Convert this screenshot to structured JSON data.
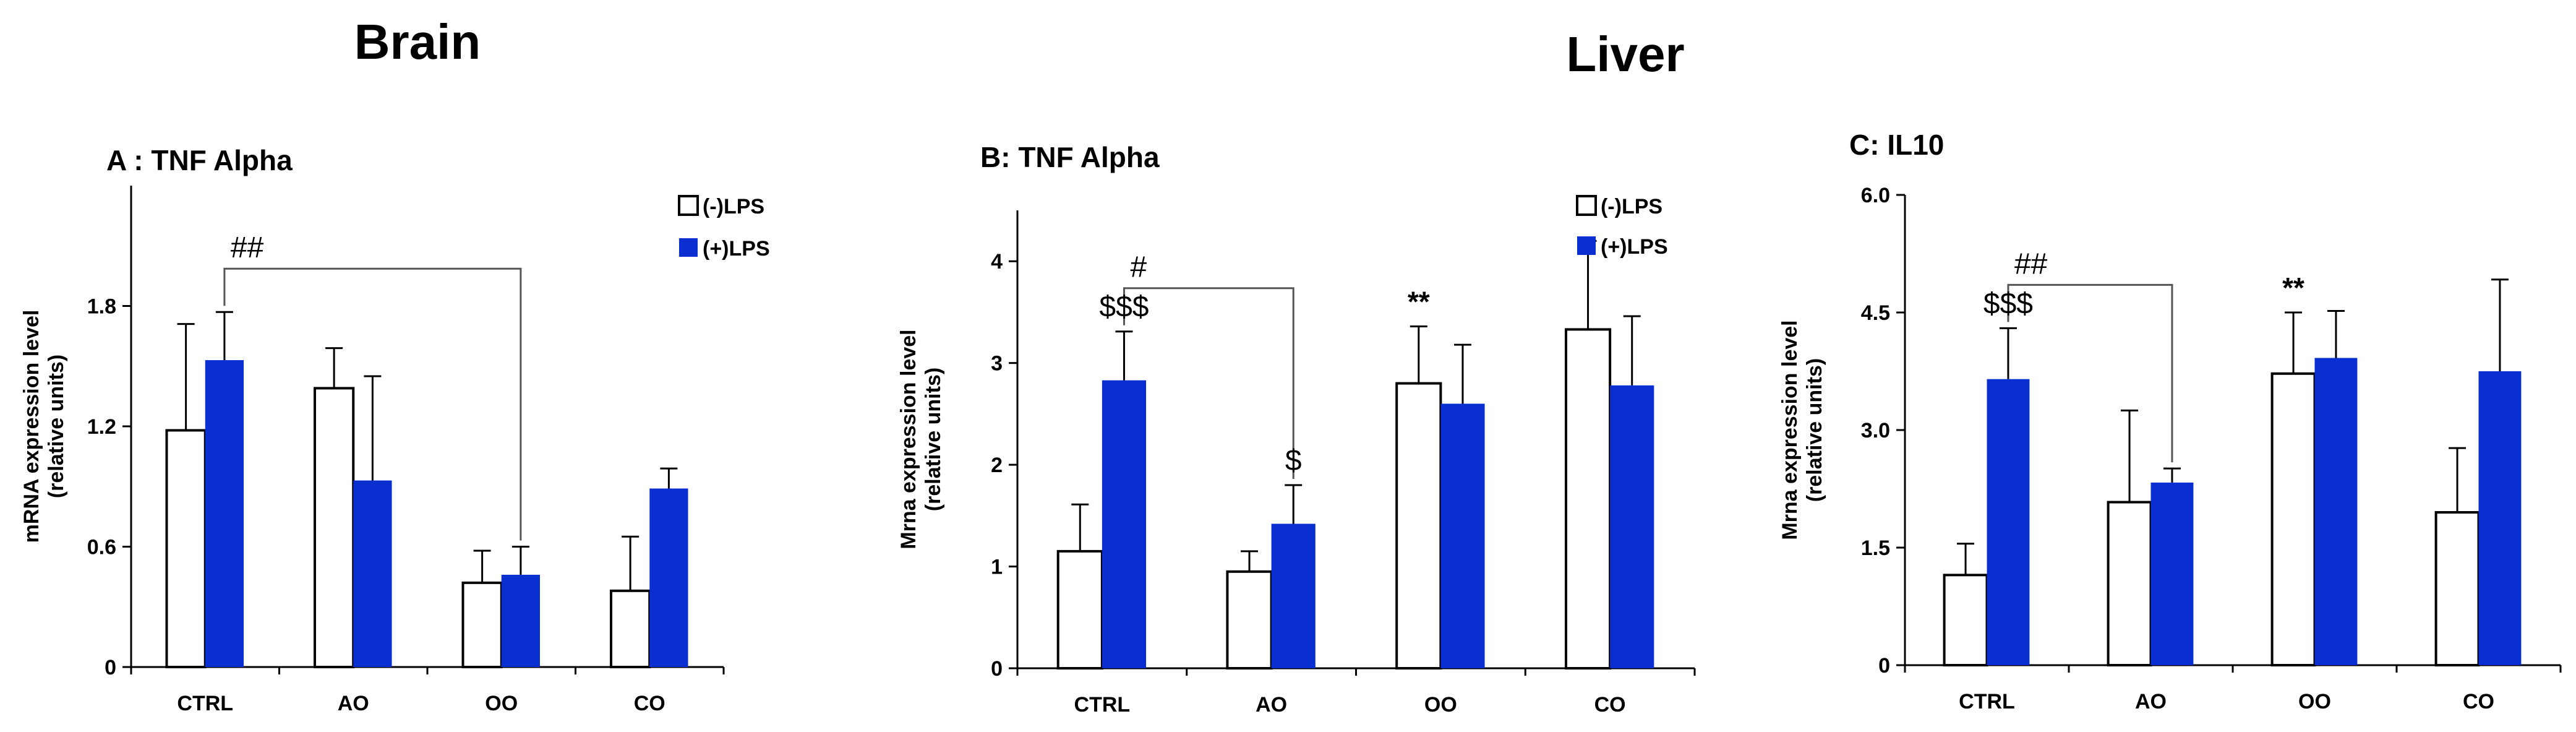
{
  "section_titles": {
    "brain": "Brain",
    "liver": "Liver"
  },
  "legend": {
    "neg": "(-)LPS",
    "pos": "(+)LPS"
  },
  "colors": {
    "neg_fill": "#ffffff",
    "pos_fill": "#0a2fd1",
    "stroke": "#000000",
    "axis": "#000000"
  },
  "chart_data": [
    {
      "id": "A",
      "type": "bar",
      "title": "A : TNF Alpha",
      "ylabel": [
        "mRNA expression level",
        "(relative units)"
      ],
      "xlabel": "",
      "categories": [
        "CTRL",
        "AO",
        "OO",
        "CO"
      ],
      "ylim": [
        0,
        2.4
      ],
      "ticks": [
        0,
        0.6,
        1.2,
        1.8
      ],
      "tick_labels": [
        "0",
        "0.6",
        "1.2",
        "1.8"
      ],
      "series": [
        {
          "name": "(-)LPS",
          "values": [
            1.18,
            1.39,
            0.42,
            0.38
          ],
          "errors": [
            0.53,
            0.2,
            0.16,
            0.27
          ]
        },
        {
          "name": "(+)LPS",
          "values": [
            1.53,
            0.93,
            0.46,
            0.89
          ],
          "errors": [
            0.24,
            0.52,
            0.14,
            0.1
          ]
        }
      ],
      "annotations": [
        {
          "text": "##",
          "type": "bracket",
          "from": [
            0,
            1
          ],
          "to": [
            2,
            1
          ]
        }
      ]
    },
    {
      "id": "B",
      "type": "bar",
      "title": "B: TNF Alpha",
      "ylabel": [
        "Mrna expression level",
        "(relative units)"
      ],
      "xlabel": "",
      "categories": [
        "CTRL",
        "AO",
        "OO",
        "CO"
      ],
      "ylim": [
        0,
        4.5
      ],
      "ticks": [
        0,
        1,
        2,
        3,
        4
      ],
      "tick_labels": [
        "0",
        "1",
        "2",
        "3",
        "4"
      ],
      "series": [
        {
          "name": "(-)LPS",
          "values": [
            1.15,
            0.95,
            2.8,
            3.33
          ],
          "errors": [
            0.46,
            0.2,
            0.56,
            0.87
          ]
        },
        {
          "name": "(+)LPS",
          "values": [
            2.83,
            1.42,
            2.6,
            2.78
          ],
          "errors": [
            0.48,
            0.38,
            0.58,
            0.68
          ]
        }
      ],
      "annotations": [
        {
          "text": "#",
          "type": "bracket",
          "from": [
            0,
            1
          ],
          "to": [
            1,
            1
          ]
        },
        {
          "text": "$$$",
          "type": "above",
          "cat": 0,
          "series": 1
        },
        {
          "text": "$",
          "type": "above",
          "cat": 1,
          "series": 1
        },
        {
          "text": "**",
          "type": "above",
          "cat": 2,
          "series": 0
        }
      ]
    },
    {
      "id": "C",
      "type": "bar",
      "title": "C: IL10",
      "ylabel": [
        "Mrna expression level",
        "(relative units)"
      ],
      "xlabel": "",
      "categories": [
        "CTRL",
        "AO",
        "OO",
        "CO"
      ],
      "ylim": [
        0,
        6.0
      ],
      "ticks": [
        0,
        1.5,
        3.0,
        4.5,
        6.0
      ],
      "tick_labels": [
        "0",
        "1.5",
        "3.0",
        "4.5",
        "6.0"
      ],
      "series": [
        {
          "name": "(-)LPS",
          "values": [
            1.15,
            2.08,
            3.72,
            1.95
          ],
          "errors": [
            0.4,
            1.17,
            0.78,
            0.82
          ]
        },
        {
          "name": "(+)LPS",
          "values": [
            3.65,
            2.33,
            3.92,
            3.75
          ],
          "errors": [
            0.65,
            0.18,
            0.6,
            1.17
          ]
        }
      ],
      "annotations": [
        {
          "text": "##",
          "type": "bracket",
          "from": [
            0,
            1
          ],
          "to": [
            1,
            1
          ]
        },
        {
          "text": "$$$",
          "type": "above",
          "cat": 0,
          "series": 1
        },
        {
          "text": "**",
          "type": "above",
          "cat": 2,
          "series": 0
        }
      ]
    }
  ]
}
